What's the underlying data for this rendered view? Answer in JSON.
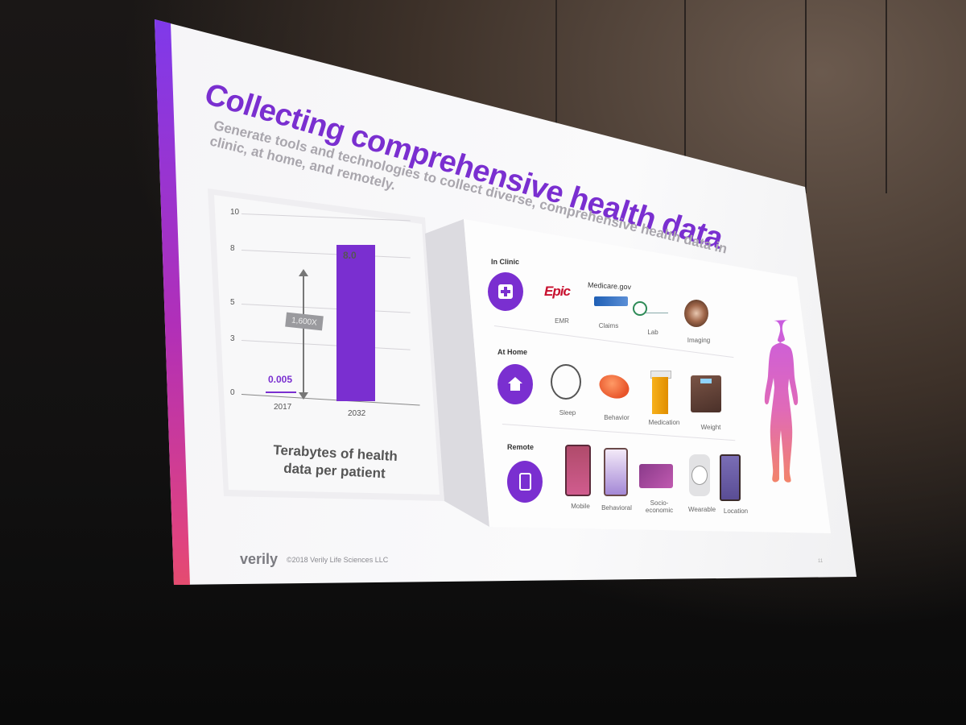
{
  "slide": {
    "title": "Collecting comprehensive health data",
    "subtitle": "Generate tools and technologies to collect diverse, comprehensive health data in clinic, at home, and remotely.",
    "footer_logo": "verily",
    "footer_copyright": "©2018 Verily Life Sciences LLC",
    "page_number": "11",
    "accent_colors": [
      "#7c3aed",
      "#b12fb8",
      "#e0437f",
      "#f26b3a"
    ]
  },
  "chart_data": {
    "type": "bar",
    "categories": [
      "2017",
      "2032"
    ],
    "values": [
      0.005,
      8.0
    ],
    "data_labels": [
      "0.005",
      "8.0"
    ],
    "ylim": [
      0,
      10
    ],
    "y_ticks": [
      "0",
      "3",
      "5",
      "8",
      "10"
    ],
    "annotation": "1,600X",
    "caption_line1": "Terabytes of health",
    "caption_line2": "data per patient",
    "bar_color": "#7a2fd0",
    "grid": true
  },
  "sources": {
    "in_clinic": {
      "label": "In Clinic",
      "icon": "plus-icon",
      "items": [
        {
          "name": "EMR",
          "logo": "Epic"
        },
        {
          "name": "Claims",
          "logo": "Medicare.gov"
        },
        {
          "name": "Lab"
        },
        {
          "name": "Imaging"
        }
      ]
    },
    "at_home": {
      "label": "At Home",
      "icon": "home-icon",
      "items": [
        {
          "name": "Sleep"
        },
        {
          "name": "Behavior"
        },
        {
          "name": "Medication"
        },
        {
          "name": "Weight"
        }
      ]
    },
    "remote": {
      "label": "Remote",
      "icon": "phone-icon",
      "items": [
        {
          "name": "Mobile"
        },
        {
          "name": "Behavioral"
        },
        {
          "name": "Socio-economic"
        },
        {
          "name": "Wearable"
        },
        {
          "name": "Location"
        }
      ]
    }
  }
}
